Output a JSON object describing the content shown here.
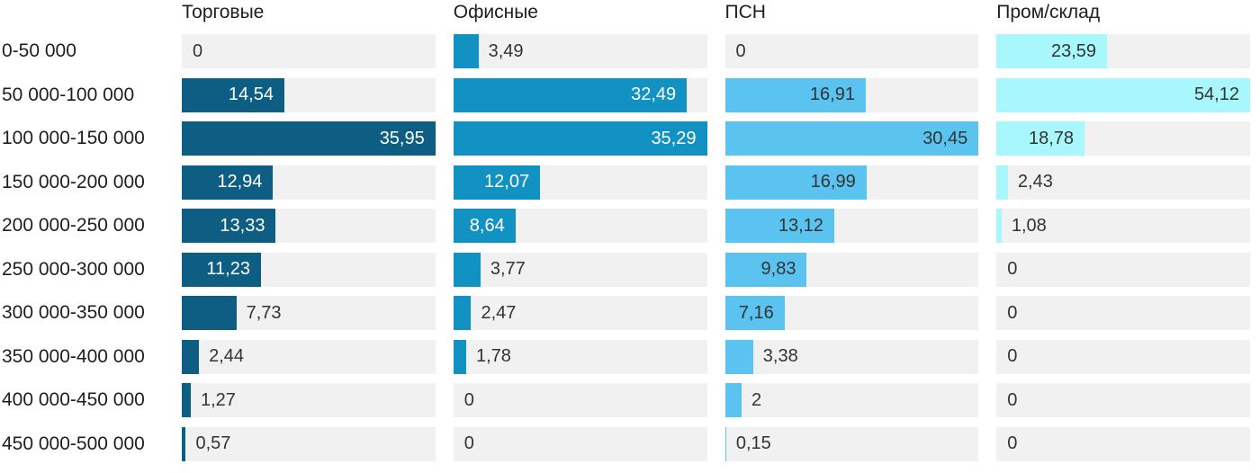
{
  "chart_data": {
    "type": "bar",
    "orientation": "horizontal",
    "title": "",
    "xlabel": "",
    "ylabel": "",
    "grid": false,
    "legend_position": "column-headers-top",
    "scaling": "each-series-scaled-to-its-own-max",
    "track_color": "#f1f1f1",
    "outside_label_color": "#333333",
    "category_label_color": "#1e1e1e",
    "categories": [
      "0-50 000",
      "50 000-100 000",
      "100 000-150 000",
      "150 000-200 000",
      "200 000-250 000",
      "250 000-300 000",
      "300 000-350 000",
      "350 000-400 000",
      "400 000-450 000",
      "450 000-500 000"
    ],
    "series": [
      {
        "name": "Торговые",
        "color": "#0e5e83",
        "inside_label_color": "#ffffff",
        "values": [
          0,
          14.54,
          35.95,
          12.94,
          13.33,
          11.23,
          7.73,
          2.44,
          1.27,
          0.57
        ],
        "labels": [
          "0",
          "14,54",
          "35,95",
          "12,94",
          "13,33",
          "11,23",
          "7,73",
          "2,44",
          "1,27",
          "0,57"
        ]
      },
      {
        "name": "Офисные",
        "color": "#1292c2",
        "inside_label_color": "#ffffff",
        "values": [
          3.49,
          32.49,
          35.29,
          12.07,
          8.64,
          3.77,
          2.47,
          1.78,
          0,
          0
        ],
        "labels": [
          "3,49",
          "32,49",
          "35,29",
          "12,07",
          "8,64",
          "3,77",
          "2,47",
          "1,78",
          "0",
          "0"
        ]
      },
      {
        "name": "ПСН",
        "color": "#5bc3ef",
        "inside_label_color": "#333333",
        "values": [
          0,
          16.91,
          30.45,
          16.99,
          13.12,
          9.83,
          7.16,
          3.38,
          2,
          0.15
        ],
        "labels": [
          "0",
          "16,91",
          "30,45",
          "16,99",
          "13,12",
          "9,83",
          "7,16",
          "3,38",
          "2",
          "0,15"
        ]
      },
      {
        "name": "Пром/склад",
        "color": "#a7f7fc",
        "inside_label_color": "#333333",
        "values": [
          23.59,
          54.12,
          18.78,
          2.43,
          1.08,
          0,
          0,
          0,
          0,
          0
        ],
        "labels": [
          "23,59",
          "54,12",
          "18,78",
          "2,43",
          "1,08",
          "0",
          "0",
          "0",
          "0",
          "0"
        ]
      }
    ]
  }
}
